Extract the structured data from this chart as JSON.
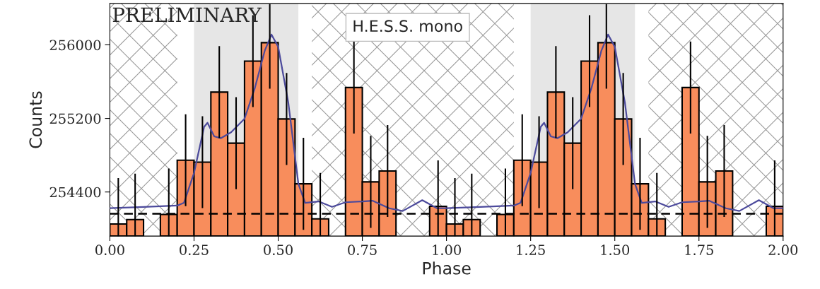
{
  "chart_data": {
    "type": "histogram",
    "xlabel": "Phase",
    "ylabel": "Counts",
    "annotations": [
      "PRELIMINARY",
      "H.E.S.S. mono"
    ],
    "bins": [
      0.0,
      0.05,
      0.1,
      0.15,
      0.2,
      0.25,
      0.3,
      0.35,
      0.4,
      0.45,
      0.5,
      0.55,
      0.6,
      0.65,
      0.7,
      0.75,
      0.8,
      0.85,
      0.9,
      0.95,
      1.0,
      1.05,
      1.1,
      1.15,
      1.2,
      1.25,
      1.3,
      1.35,
      1.4,
      1.45,
      1.5,
      1.55,
      1.6,
      1.65,
      1.7,
      1.75,
      1.8,
      1.85,
      1.9,
      1.95,
      2.0
    ],
    "series": [
      {
        "color": "#f88d5c",
        "values": [
          254052,
          254100,
          null,
          254155,
          254745,
          254724,
          255486,
          254931,
          255823,
          256024,
          255194,
          254489,
          254107,
          null,
          255536,
          254510,
          254628,
          null,
          null,
          254244,
          254052,
          254100,
          null,
          254155,
          254745,
          254724,
          255486,
          254931,
          255823,
          256024,
          255194,
          254489,
          254107,
          null,
          255536,
          254510,
          254628,
          null,
          null,
          254244
        ],
        "errors": [
          500,
          500,
          null,
          500,
          500,
          500,
          500,
          500,
          500,
          [
            255524,
            256444
          ],
          500,
          500,
          500,
          null,
          500,
          500,
          500,
          null,
          null,
          500,
          500,
          500,
          null,
          500,
          500,
          500,
          500,
          500,
          500,
          [
            255524,
            256444
          ],
          500,
          500,
          500,
          null,
          500,
          500,
          500,
          null,
          null,
          500
        ]
      },
      {
        "type": "line",
        "color": "#4c4a9c",
        "x": [
          0.0,
          0.1,
          0.2,
          0.22,
          0.25,
          0.28,
          0.29,
          0.31,
          0.33,
          0.36,
          0.4,
          0.43,
          0.46,
          0.48,
          0.5,
          0.53,
          0.56,
          0.58,
          0.62,
          0.66,
          0.7,
          0.75,
          0.78,
          0.83,
          0.87,
          0.928,
          0.972,
          1.0,
          1.1,
          1.2,
          1.22,
          1.25,
          1.28,
          1.29,
          1.31,
          1.33,
          1.36,
          1.4,
          1.43,
          1.46,
          1.48,
          1.5,
          1.53,
          1.56,
          1.58,
          1.62,
          1.66,
          1.7,
          1.75,
          1.78,
          1.83,
          1.87,
          1.928,
          1.972,
          2.0
        ],
        "values": [
          254223,
          254238,
          254252,
          254282,
          254607,
          255108,
          255153,
          255005,
          254985,
          255049,
          255197,
          255522,
          255935,
          256112,
          255979,
          255374,
          254489,
          254282,
          254297,
          254238,
          254288,
          254297,
          254305,
          254223,
          254193,
          254311,
          254223,
          254223,
          254238,
          254252,
          254282,
          254607,
          255108,
          255153,
          255005,
          254985,
          255049,
          255197,
          255522,
          255935,
          256112,
          255979,
          255374,
          254489,
          254282,
          254297,
          254238,
          254288,
          254297,
          254305,
          254223,
          254193,
          254311,
          254223,
          254223
        ]
      }
    ],
    "ref_lines": [
      {
        "axis": "y",
        "value": 254164,
        "color": "#000000",
        "line_style": "dashed"
      }
    ],
    "bands": [
      {
        "axis": "x",
        "from": 0.0,
        "to": 0.2
      },
      {
        "axis": "x",
        "from": 0.25,
        "to": 0.56,
        "color": "#e6e6e6"
      },
      {
        "axis": "x",
        "from": 0.6,
        "to": 1.2
      },
      {
        "axis": "x",
        "from": 1.25,
        "to": 1.56,
        "color": "#e6e6e6"
      },
      {
        "axis": "x",
        "from": 1.6,
        "to": 2.0
      }
    ],
    "xlim": [
      0.0,
      2.0
    ],
    "xticks": [
      {
        "value": 0.0,
        "label": "0.00"
      },
      {
        "value": 0.25,
        "label": "0.25"
      },
      {
        "value": 0.5,
        "label": "0.50"
      },
      {
        "value": 0.75,
        "label": "0.75"
      },
      {
        "value": 1.0,
        "label": "1.00"
      },
      {
        "value": 1.25,
        "label": "1.25"
      },
      {
        "value": 1.5,
        "label": "1.50"
      },
      {
        "value": 1.75,
        "label": "1.75"
      },
      {
        "value": 2.0,
        "label": "2.00"
      }
    ],
    "ylim": [
      253920,
      256450
    ],
    "yticks": [
      254400,
      255200,
      256000
    ],
    "grid": false,
    "legend": false
  }
}
